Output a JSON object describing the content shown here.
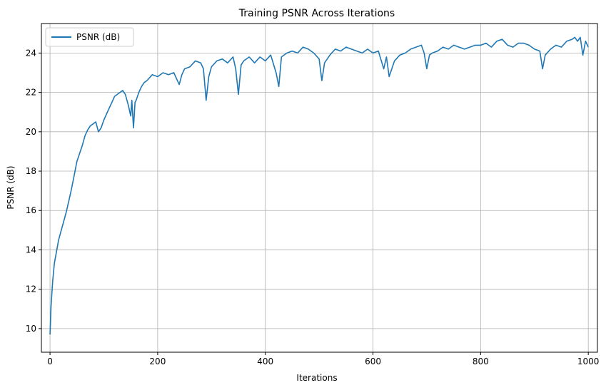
{
  "chart_data": {
    "type": "line",
    "title": "Training PSNR Across Iterations",
    "xlabel": "Iterations",
    "ylabel": "PSNR (dB)",
    "xlim": [
      -16,
      1017
    ],
    "ylim": [
      8.8,
      25.5
    ],
    "xticks": [
      0,
      200,
      400,
      600,
      800,
      1000
    ],
    "yticks": [
      10,
      12,
      14,
      16,
      18,
      20,
      22,
      24
    ],
    "grid": true,
    "legend_position": "top-left",
    "series": [
      {
        "name": "PSNR (dB)",
        "color": "#1f77b4",
        "x": [
          0,
          2,
          5,
          8,
          12,
          16,
          20,
          25,
          30,
          35,
          40,
          45,
          50,
          55,
          60,
          65,
          70,
          75,
          80,
          85,
          90,
          95,
          100,
          105,
          110,
          115,
          120,
          125,
          130,
          135,
          140,
          145,
          150,
          152,
          155,
          158,
          160,
          165,
          170,
          175,
          180,
          190,
          200,
          210,
          220,
          230,
          240,
          245,
          250,
          260,
          270,
          280,
          285,
          290,
          295,
          300,
          310,
          320,
          330,
          340,
          345,
          350,
          355,
          360,
          370,
          380,
          390,
          400,
          410,
          420,
          425,
          430,
          440,
          450,
          460,
          470,
          480,
          490,
          500,
          505,
          510,
          520,
          530,
          540,
          550,
          560,
          570,
          580,
          590,
          600,
          610,
          620,
          625,
          630,
          640,
          650,
          660,
          670,
          680,
          690,
          695,
          700,
          705,
          710,
          720,
          730,
          740,
          750,
          760,
          770,
          780,
          790,
          800,
          810,
          820,
          830,
          840,
          850,
          860,
          870,
          880,
          890,
          900,
          910,
          915,
          920,
          930,
          940,
          950,
          960,
          970,
          975,
          980,
          985,
          990,
          995,
          1000
        ],
        "y": [
          9.7,
          11.2,
          12.4,
          13.3,
          13.9,
          14.5,
          14.9,
          15.4,
          15.9,
          16.5,
          17.1,
          17.8,
          18.5,
          18.9,
          19.3,
          19.8,
          20.1,
          20.3,
          20.4,
          20.5,
          20.0,
          20.2,
          20.6,
          20.9,
          21.2,
          21.5,
          21.8,
          21.9,
          22.0,
          22.1,
          21.9,
          21.4,
          20.8,
          21.6,
          20.2,
          21.5,
          21.6,
          22.0,
          22.3,
          22.5,
          22.6,
          22.9,
          22.8,
          23.0,
          22.9,
          23.0,
          22.4,
          22.9,
          23.2,
          23.3,
          23.6,
          23.5,
          23.2,
          21.6,
          22.8,
          23.3,
          23.6,
          23.7,
          23.5,
          23.8,
          23.2,
          21.9,
          23.4,
          23.6,
          23.8,
          23.5,
          23.8,
          23.6,
          23.9,
          23.0,
          22.3,
          23.8,
          24.0,
          24.1,
          24.0,
          24.3,
          24.2,
          24.0,
          23.7,
          22.6,
          23.5,
          23.9,
          24.2,
          24.1,
          24.3,
          24.2,
          24.1,
          24.0,
          24.2,
          24.0,
          24.1,
          23.2,
          23.8,
          22.8,
          23.6,
          23.9,
          24.0,
          24.2,
          24.3,
          24.4,
          24.0,
          23.2,
          23.9,
          24.0,
          24.1,
          24.3,
          24.2,
          24.4,
          24.3,
          24.2,
          24.3,
          24.4,
          24.4,
          24.5,
          24.3,
          24.6,
          24.7,
          24.4,
          24.3,
          24.5,
          24.5,
          24.4,
          24.2,
          24.1,
          23.2,
          23.9,
          24.2,
          24.4,
          24.3,
          24.6,
          24.7,
          24.8,
          24.6,
          24.8,
          23.9,
          24.6,
          24.3
        ]
      }
    ]
  }
}
